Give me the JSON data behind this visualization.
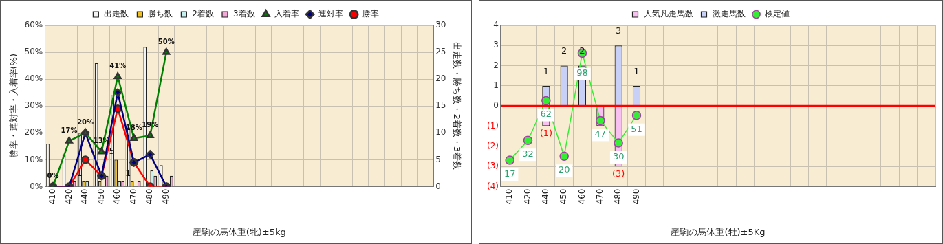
{
  "chart_data": [
    {
      "type": "bar",
      "xlabel": "産駒の馬体重(牝)±5kg",
      "ylabel": "勝率・連対率・入着率(%)",
      "y2label": "出走数・勝ち数・2着数・3着数",
      "categories": [
        "410",
        "420",
        "440",
        "450",
        "460",
        "470",
        "480",
        "490",
        null,
        null,
        null,
        null,
        null,
        null,
        null,
        null,
        null,
        null,
        null,
        null,
        null,
        null,
        null,
        null
      ],
      "series": [
        {
          "name": "出走数",
          "axis": "y2",
          "color": "#f4f4f4",
          "values": [
            8,
            6,
            10,
            23,
            17,
            11,
            26,
            4,
            null,
            null,
            null,
            null,
            null,
            null,
            null,
            null,
            null,
            null,
            null,
            null,
            null,
            null,
            null,
            null
          ]
        },
        {
          "name": "勝ち数",
          "axis": "y2",
          "color": "#f0c020",
          "values": [
            0,
            0,
            1,
            1,
            5,
            1,
            0,
            0,
            null,
            null,
            null,
            null,
            null,
            null,
            null,
            null,
            null,
            null,
            null,
            null,
            null,
            null,
            null,
            null
          ],
          "value_labels": [
            null,
            null,
            "1",
            null,
            "5",
            "1",
            null,
            null,
            null,
            null,
            null,
            null,
            null,
            null,
            null,
            null,
            null,
            null,
            null,
            null,
            null,
            null,
            null,
            null
          ]
        },
        {
          "name": "2着数",
          "axis": "y2",
          "color": "#c4f0f0",
          "values": [
            0,
            0,
            1,
            0,
            1,
            0,
            3,
            0,
            null,
            null,
            null,
            null,
            null,
            null,
            null,
            null,
            null,
            null,
            null,
            null,
            null,
            null,
            null,
            null
          ]
        },
        {
          "name": "3着数",
          "axis": "y2",
          "color": "#f4a8d8",
          "values": [
            0,
            1,
            0,
            2,
            1,
            1,
            2,
            2,
            null,
            null,
            null,
            null,
            null,
            null,
            null,
            null,
            null,
            null,
            null,
            null,
            null,
            null,
            null,
            null
          ]
        },
        {
          "name": "入着率",
          "type": "line",
          "color": "#008000",
          "marker": "triangle",
          "values": [
            0,
            17,
            20,
            13,
            41,
            18,
            19,
            50,
            null,
            null,
            null,
            null,
            null,
            null,
            null,
            null,
            null,
            null,
            null,
            null,
            null,
            null,
            null,
            null
          ],
          "value_labels": [
            "0%",
            "17%",
            "20%",
            "13%",
            "41%",
            "18%",
            "19%",
            "50%",
            null,
            null,
            null,
            null,
            null,
            null,
            null,
            null,
            null,
            null,
            null,
            null,
            null,
            null,
            null,
            null
          ]
        },
        {
          "name": "連対率",
          "type": "line",
          "color": "#000080",
          "marker": "diamond",
          "values": [
            0,
            0,
            20,
            4,
            35,
            9,
            12,
            0,
            null,
            null,
            null,
            null,
            null,
            null,
            null,
            null,
            null,
            null,
            null,
            null,
            null,
            null,
            null,
            null
          ]
        },
        {
          "name": "勝率",
          "type": "line",
          "color": "#ff0000",
          "marker": "circle",
          "values": [
            0,
            0,
            10,
            4,
            29,
            9,
            0,
            0,
            null,
            null,
            null,
            null,
            null,
            null,
            null,
            null,
            null,
            null,
            null,
            null,
            null,
            null,
            null,
            null
          ]
        }
      ],
      "ylim": [
        0,
        60
      ],
      "yticks": [
        {
          "value": 0,
          "label": "0%"
        },
        {
          "value": 10,
          "label": "10%"
        },
        {
          "value": 20,
          "label": "20%"
        },
        {
          "value": 30,
          "label": "30%"
        },
        {
          "value": 40,
          "label": "40%"
        },
        {
          "value": 50,
          "label": "50%"
        },
        {
          "value": 60,
          "label": "60%"
        }
      ],
      "y2lim": [
        0,
        30
      ],
      "y2ticks": [
        0,
        5,
        10,
        15,
        20,
        25,
        30
      ],
      "grid": true,
      "legend": "top"
    },
    {
      "type": "bar",
      "xlabel": "産駒の馬体重(牡)±5Kg",
      "stacked": true,
      "categories": [
        "410",
        "420",
        "440",
        "450",
        "460",
        "470",
        "480",
        "490",
        null,
        null,
        null,
        null,
        null,
        null,
        null,
        null,
        null,
        null,
        null,
        null,
        null,
        null,
        null,
        null
      ],
      "series": [
        {
          "name": "人気凡走馬数",
          "color": "#f8c0f0",
          "values": [
            0,
            0,
            -1,
            0,
            0,
            -1,
            -3,
            0,
            null,
            null,
            null,
            null,
            null,
            null,
            null,
            null,
            null,
            null,
            null,
            null,
            null,
            null,
            null,
            null
          ],
          "value_labels": [
            null,
            null,
            "(1)",
            null,
            null,
            null,
            "(3)",
            null,
            null,
            null,
            null,
            null,
            null,
            null,
            null,
            null,
            null,
            null,
            null,
            null,
            null,
            null,
            null,
            null
          ]
        },
        {
          "name": "激走馬数",
          "color": "#c8d0f8",
          "values": [
            0,
            0,
            1,
            2,
            2,
            0,
            3,
            1,
            null,
            null,
            null,
            null,
            null,
            null,
            null,
            null,
            null,
            null,
            null,
            null,
            null,
            null,
            null,
            null
          ],
          "value_labels": [
            null,
            null,
            "1",
            "2",
            "2",
            null,
            "3",
            "1",
            null,
            null,
            null,
            null,
            null,
            null,
            null,
            null,
            null,
            null,
            null,
            null,
            null,
            null,
            null,
            null
          ]
        },
        {
          "name": "検定値",
          "type": "line",
          "axis": "y2",
          "color": "#33ee33",
          "marker": "circle",
          "values": [
            17,
            32,
            62,
            20,
            98,
            47,
            30,
            51,
            null,
            null,
            null,
            null,
            null,
            null,
            null,
            null,
            null,
            null,
            null,
            null,
            null,
            null,
            null,
            null
          ],
          "value_labels": [
            "17",
            "32",
            "62",
            "20",
            "98",
            "47",
            "30",
            "51",
            null,
            null,
            null,
            null,
            null,
            null,
            null,
            null,
            null,
            null,
            null,
            null,
            null,
            null,
            null,
            null
          ]
        }
      ],
      "ylim": [
        -4,
        4
      ],
      "yticks": [
        {
          "value": -4,
          "label": "(4)"
        },
        {
          "value": -3,
          "label": "(3)"
        },
        {
          "value": -2,
          "label": "(2)"
        },
        {
          "value": -1,
          "label": "(1)"
        },
        0,
        1,
        2,
        3,
        4
      ],
      "y2lim": [
        -3,
        119
      ],
      "ref_lines": [
        {
          "axis": "y",
          "value": 0,
          "color": "#ff0000"
        }
      ],
      "grid": true,
      "legend": "top"
    }
  ]
}
